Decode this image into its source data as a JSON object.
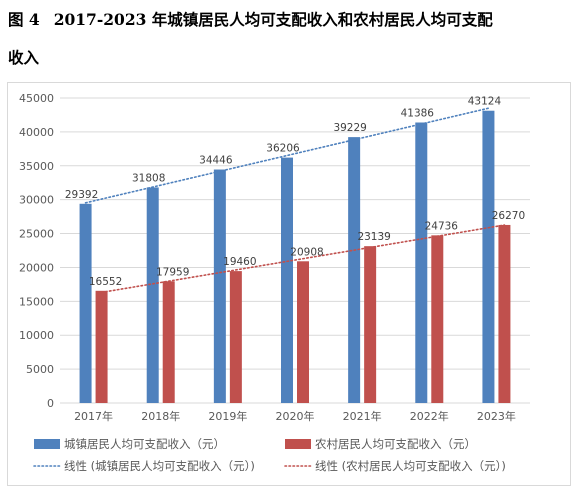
{
  "figure_label": "图 4",
  "title_line1": "2017-2023 年城镇居民人均可支配收入和农村居民人均可支配",
  "title_line2": "收入",
  "colors": {
    "urban": "#4f81bd",
    "rural": "#c0504d",
    "grid": "#d9d9d9",
    "axis_text": "#595959"
  },
  "chart_data": {
    "type": "bar",
    "title": "2017-2023 年城镇居民人均可支配收入和农村居民人均可支配收入",
    "categories": [
      "2017年",
      "2018年",
      "2019年",
      "2020年",
      "2021年",
      "2022年",
      "2023年"
    ],
    "series": [
      {
        "name": "城镇居民人均可支配收入（元）",
        "values": [
          29392,
          31808,
          34446,
          36206,
          39229,
          41386,
          43124
        ]
      },
      {
        "name": "农村居民人均可支配收入（元）",
        "values": [
          16552,
          17959,
          19460,
          20908,
          23139,
          24736,
          26270
        ]
      }
    ],
    "trendlines": [
      {
        "name": "线性 (城镇居民人均可支配收入（元）)",
        "series_index": 0,
        "style": "dotted"
      },
      {
        "name": "线性 (农村居民人均可支配收入（元）)",
        "series_index": 1,
        "style": "dotted"
      }
    ],
    "ylim": [
      0,
      45000
    ],
    "yticks": [
      "0",
      "5000",
      "10000",
      "15000",
      "20000",
      "25000",
      "30000",
      "35000",
      "40000",
      "45000"
    ],
    "grid": true,
    "legend_position": "bottom",
    "data_labels": true
  }
}
